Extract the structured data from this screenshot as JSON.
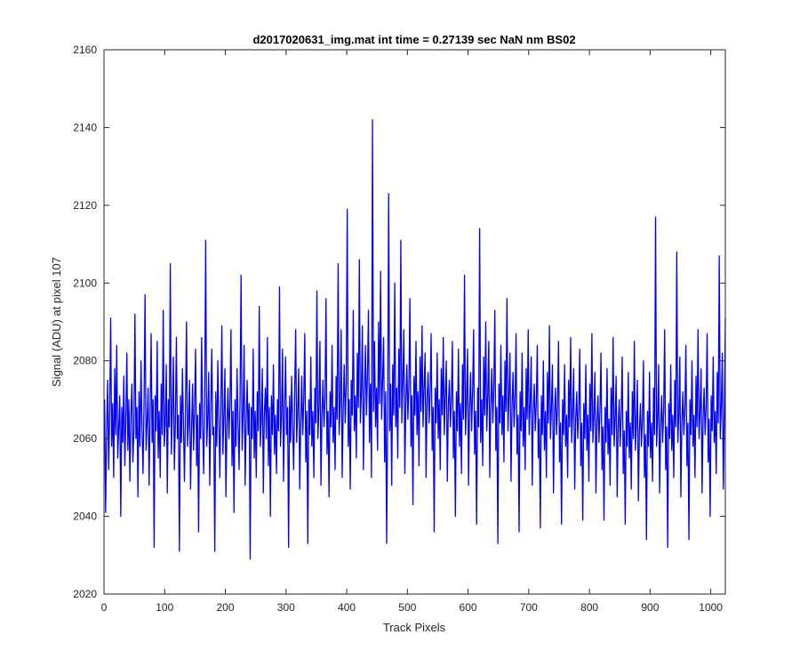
{
  "chart_data": {
    "type": "line",
    "title": "d2017020631_img.mat int time = 0.27139 sec  NaN nm BS02",
    "xlabel": "Track Pixels",
    "ylabel": "Signal (ADU) at pixel 107",
    "xlim": [
      0,
      1024
    ],
    "ylim": [
      2020,
      2160
    ],
    "xticks": [
      0,
      100,
      200,
      300,
      400,
      500,
      600,
      700,
      800,
      900,
      1000
    ],
    "yticks": [
      2020,
      2040,
      2060,
      2080,
      2100,
      2120,
      2140,
      2160
    ],
    "xtick_labels": [
      "0",
      "100",
      "200",
      "300",
      "400",
      "500",
      "600",
      "700",
      "800",
      "900",
      "1000"
    ],
    "ytick_labels": [
      "2020",
      "2040",
      "2060",
      "2080",
      "2100",
      "2120",
      "2140",
      "2160"
    ],
    "grid": false,
    "line_color": "#0000ff",
    "series": [
      {
        "x_start": 1,
        "x_step": 1,
        "values": [
          2070,
          2041,
          2062,
          2075,
          2052,
          2066,
          2091,
          2058,
          2069,
          2050,
          2078,
          2061,
          2084,
          2055,
          2063,
          2071,
          2040,
          2068,
          2059,
          2076,
          2053,
          2065,
          2082,
          2057,
          2070,
          2049,
          2066,
          2074,
          2054,
          2062,
          2092,
          2060,
          2068,
          2045,
          2072,
          2058,
          2080,
          2063,
          2051,
          2069,
          2097,
          2057,
          2064,
          2073,
          2048,
          2066,
          2087,
          2059,
          2070,
          2032,
          2071,
          2062,
          2085,
          2055,
          2067,
          2050,
          2074,
          2061,
          2093,
          2058,
          2064,
          2079,
          2046,
          2070,
          2063,
          2105,
          2056,
          2067,
          2081,
          2052,
          2064,
          2086,
          2060,
          2066,
          2031,
          2071,
          2059,
          2078,
          2063,
          2049,
          2068,
          2090,
          2058,
          2064,
          2075,
          2047,
          2062,
          2074,
          2057,
          2068,
          2083,
          2053,
          2066,
          2036,
          2069,
          2060,
          2086,
          2063,
          2051,
          2071,
          2111,
          2058,
          2065,
          2077,
          2048,
          2067,
          2083,
          2061,
          2063,
          2031,
          2072,
          2058,
          2080,
          2065,
          2050,
          2068,
          2089,
          2056,
          2066,
          2078,
          2045,
          2063,
          2073,
          2060,
          2069,
          2088,
          2053,
          2067,
          2041,
          2070,
          2058,
          2078,
          2064,
          2052,
          2071,
          2102,
          2057,
          2066,
          2084,
          2048,
          2064,
          2075,
          2061,
          2069,
          2029,
          2068,
          2060,
          2083,
          2055,
          2067,
          2050,
          2072,
          2062,
          2094,
          2058,
          2065,
          2078,
          2046,
          2066,
          2073,
          2060,
          2086,
          2053,
          2068,
          2040,
          2071,
          2061,
          2079,
          2056,
          2066,
          2051,
          2070,
          2062,
          2099,
          2058,
          2066,
          2083,
          2049,
          2067,
          2081,
          2061,
          2068,
          2032,
          2071,
          2059,
          2076,
          2063,
          2052,
          2072,
          2088,
          2059,
          2067,
          2078,
          2047,
          2063,
          2076,
          2061,
          2070,
          2087,
          2054,
          2067,
          2033,
          2070,
          2061,
          2081,
          2058,
          2067,
          2050,
          2073,
          2064,
          2098,
          2060,
          2068,
          2085,
          2048,
          2066,
          2075,
          2063,
          2070,
          2096,
          2056,
          2067,
          2045,
          2072,
          2063,
          2084,
          2059,
          2068,
          2052,
          2076,
          2065,
          2105,
          2061,
          2069,
          2088,
          2050,
          2067,
          2079,
          2064,
          2074,
          2119,
          2058,
          2070,
          2047,
          2075,
          2066,
          2093,
          2062,
          2071,
          2055,
          2082,
          2068,
          2106,
          2064,
          2072,
          2089,
          2052,
          2071,
          2084,
          2066,
          2076,
          2093,
          2059,
          2074,
          2050,
          2142,
          2067,
          2085,
          2063,
          2073,
          2057,
          2090,
          2069,
          2103,
          2065,
          2075,
          2086,
          2054,
          2072,
          2033,
          2067,
          2123,
          2062,
          2074,
          2048,
          2079,
          2066,
          2100,
          2063,
          2073,
          2055,
          2083,
          2068,
          2111,
          2064,
          2075,
          2088,
          2051,
          2070,
          2079,
          2065,
          2074,
          2096,
          2058,
          2071,
          2043,
          2076,
          2066,
          2085,
          2061,
          2072,
          2053,
          2081,
          2067,
          2089,
          2063,
          2073,
          2082,
          2050,
          2070,
          2077,
          2064,
          2072,
          2087,
          2057,
          2068,
          2036,
          2073,
          2064,
          2082,
          2060,
          2070,
          2052,
          2078,
          2066,
          2086,
          2061,
          2071,
          2080,
          2049,
          2068,
          2075,
          2063,
          2070,
          2085,
          2055,
          2067,
          2040,
          2072,
          2062,
          2083,
          2058,
          2069,
          2051,
          2079,
          2065,
          2102,
          2061,
          2070,
          2083,
          2048,
          2068,
          2077,
          2062,
          2072,
          2088,
          2056,
          2067,
          2038,
          2073,
          2063,
          2114,
          2059,
          2070,
          2053,
          2081,
          2066,
          2090,
          2062,
          2071,
          2085,
          2050,
          2069,
          2078,
          2064,
          2073,
          2093,
          2057,
          2068,
          2033,
          2074,
          2064,
          2084,
          2061,
          2071,
          2054,
          2080,
          2067,
          2096,
          2062,
          2071,
          2082,
          2049,
          2068,
          2077,
          2063,
          2070,
          2087,
          2056,
          2066,
          2036,
          2072,
          2062,
          2082,
          2058,
          2068,
          2052,
          2078,
          2065,
          2088,
          2061,
          2069,
          2081,
          2048,
          2067,
          2074,
          2062,
          2069,
          2084,
          2055,
          2065,
          2037,
          2071,
          2061,
          2080,
          2057,
          2067,
          2050,
          2077,
          2064,
          2089,
          2060,
          2068,
          2079,
          2046,
          2066,
          2073,
          2061,
          2068,
          2085,
          2054,
          2064,
          2038,
          2070,
          2061,
          2079,
          2058,
          2066,
          2050,
          2075,
          2063,
          2086,
          2059,
          2067,
          2078,
          2047,
          2065,
          2072,
          2060,
          2068,
          2083,
          2053,
          2064,
          2039,
          2069,
          2060,
          2079,
          2057,
          2066,
          2049,
          2074,
          2062,
          2087,
          2059,
          2066,
          2077,
          2046,
          2064,
          2071,
          2059,
          2067,
          2082,
          2052,
          2063,
          2039,
          2068,
          2059,
          2078,
          2056,
          2065,
          2048,
          2073,
          2061,
          2086,
          2058,
          2065,
          2076,
          2045,
          2063,
          2070,
          2058,
          2066,
          2081,
          2051,
          2062,
          2038,
          2067,
          2058,
          2077,
          2055,
          2064,
          2047,
          2072,
          2060,
          2085,
          2057,
          2064,
          2075,
          2044,
          2062,
          2069,
          2058,
          2065,
          2080,
          2050,
          2061,
          2034,
          2067,
          2058,
          2077,
          2055,
          2064,
          2049,
          2073,
          2061,
          2117,
          2058,
          2065,
          2079,
          2046,
          2063,
          2071,
          2059,
          2067,
          2088,
          2052,
          2063,
          2032,
          2069,
          2060,
          2079,
          2057,
          2066,
          2050,
          2075,
          2063,
          2108,
          2059,
          2066,
          2081,
          2045,
          2064,
          2072,
          2061,
          2068,
          2084,
          2053,
          2064,
          2034,
          2070,
          2061,
          2080,
          2058,
          2066,
          2050,
          2076,
          2063,
          2088,
          2060,
          2067,
          2078,
          2046,
          2065,
          2073,
          2061,
          2068,
          2087,
          2054,
          2065,
          2040,
          2071,
          2062,
          2081,
          2059,
          2067,
          2051,
          2077,
          2064,
          2107,
          2060,
          2068,
          2082,
          2047,
          2066,
          2091
        ]
      }
    ]
  }
}
